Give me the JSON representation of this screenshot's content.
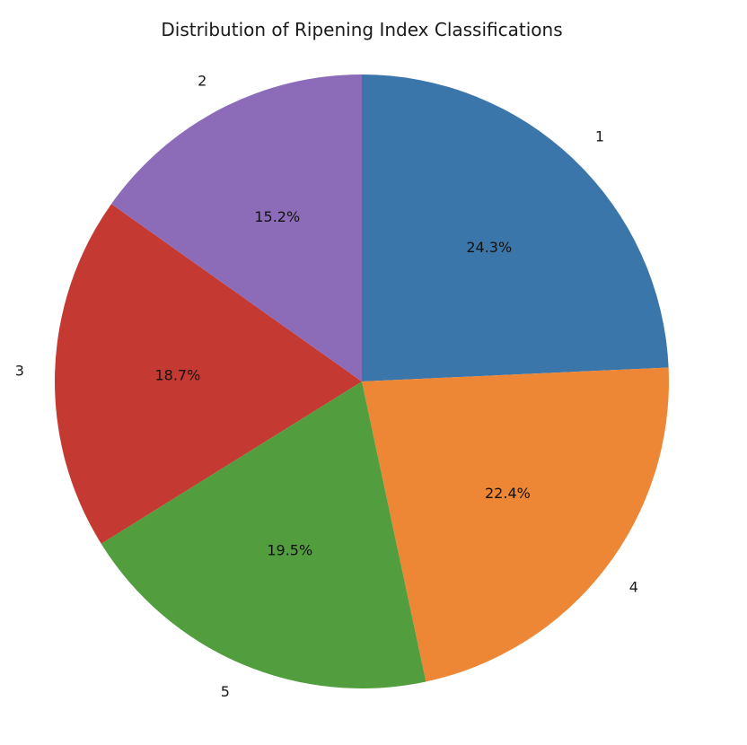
{
  "chart_data": {
    "type": "pie",
    "title": "Distribution of Ripening Index Classifications",
    "start_angle_deg": 90,
    "direction": "clockwise",
    "slices": [
      {
        "label": "1",
        "value": 24.3,
        "pct_label": "24.3%",
        "color": "#3b76ab"
      },
      {
        "label": "4",
        "value": 22.4,
        "pct_label": "22.4%",
        "color": "#ee8735"
      },
      {
        "label": "5",
        "value": 19.5,
        "pct_label": "19.5%",
        "color": "#529e3f"
      },
      {
        "label": "3",
        "value": 18.7,
        "pct_label": "18.7%",
        "color": "#c43a32"
      },
      {
        "label": "2",
        "value": 15.2,
        "pct_label": "15.2%",
        "color": "#8c6bb8"
      }
    ]
  }
}
